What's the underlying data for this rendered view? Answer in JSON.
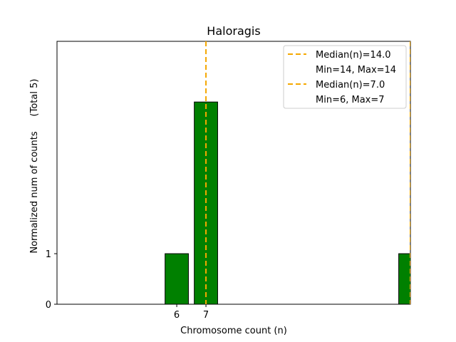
{
  "chart_data": {
    "type": "bar",
    "title": "Haloragis",
    "xlabel": "Chromosome count (n)",
    "ylabel": "Normalized num of counts",
    "ylabel_total": "(Total 5)",
    "x_ticks": [
      6,
      7
    ],
    "y_ticks": [
      0,
      1
    ],
    "xlim": [
      1.9,
      14.0
    ],
    "ylim": [
      0,
      5.2
    ],
    "bar_color": "#008000",
    "bars": [
      {
        "x": 6,
        "value": 1
      },
      {
        "x": 7,
        "value": 4
      },
      {
        "x": 14,
        "value": 1
      }
    ],
    "median_lines": [
      {
        "value": 14.0,
        "color": "#f5a800"
      },
      {
        "value": 7.0,
        "color": "#f5a800"
      }
    ],
    "legend": [
      {
        "median": "Median(n)=14.0",
        "range": "Min=14, Max=14"
      },
      {
        "median": "Median(n)=7.0",
        "range": "Min=6, Max=7"
      }
    ],
    "legend_position": "top-right"
  }
}
